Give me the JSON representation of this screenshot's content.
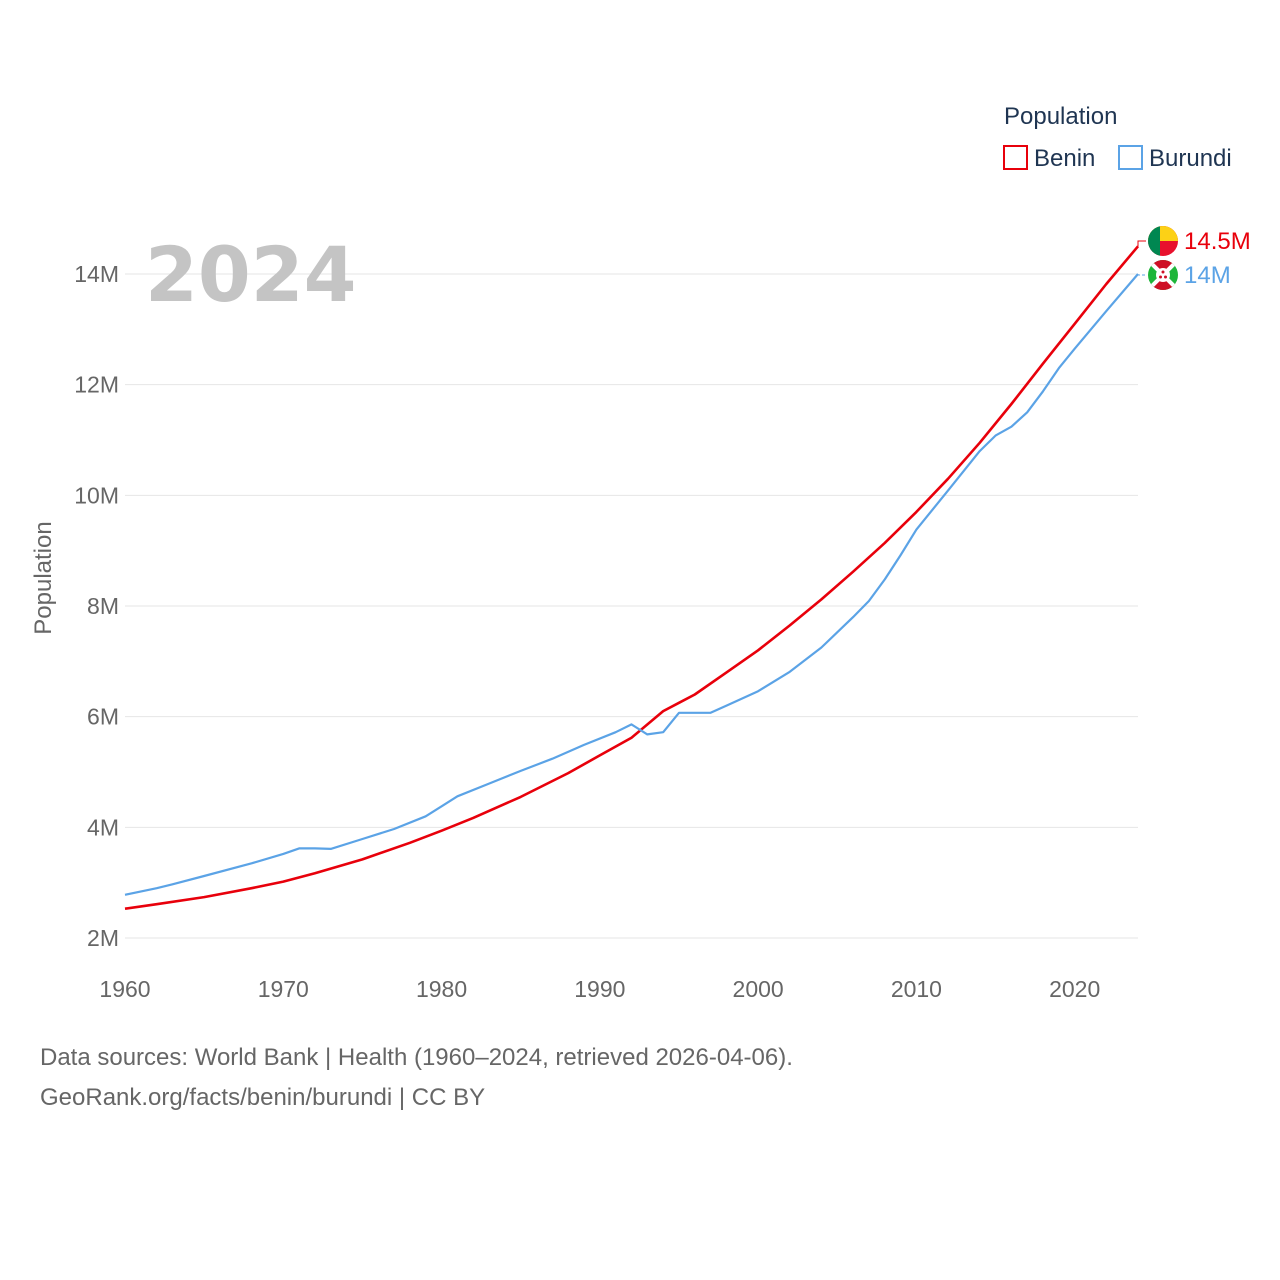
{
  "chart_data": {
    "type": "line",
    "current_year": "2024",
    "ylabel": "Population",
    "xlabel": "",
    "xlim": [
      1960,
      2024
    ],
    "ylim": [
      1.5,
      15.2
    ],
    "y_unit": "millions",
    "x_ticks": [
      1960,
      1970,
      1980,
      1990,
      2000,
      2010,
      2020
    ],
    "y_ticks": [
      {
        "value": 2,
        "label": "2M"
      },
      {
        "value": 4,
        "label": "4M"
      },
      {
        "value": 6,
        "label": "6M"
      },
      {
        "value": 8,
        "label": "8M"
      },
      {
        "value": 10,
        "label": "10M"
      },
      {
        "value": 12,
        "label": "12M"
      },
      {
        "value": 14,
        "label": "14M"
      }
    ],
    "grid": true,
    "legend": {
      "title": "Population",
      "position": "top-right",
      "entries": [
        "Benin",
        "Burundi"
      ]
    },
    "series": [
      {
        "name": "Benin",
        "color": "#e8000b",
        "end_label": "14.5M",
        "flag": "benin-flag",
        "points": [
          [
            1960,
            2.53
          ],
          [
            1962,
            2.61
          ],
          [
            1965,
            2.74
          ],
          [
            1968,
            2.9
          ],
          [
            1970,
            3.02
          ],
          [
            1972,
            3.17
          ],
          [
            1975,
            3.42
          ],
          [
            1978,
            3.72
          ],
          [
            1980,
            3.94
          ],
          [
            1982,
            4.17
          ],
          [
            1985,
            4.55
          ],
          [
            1988,
            4.98
          ],
          [
            1990,
            5.3
          ],
          [
            1992,
            5.62
          ],
          [
            1994,
            6.1
          ],
          [
            1995,
            6.25
          ],
          [
            1996,
            6.4
          ],
          [
            1998,
            6.8
          ],
          [
            2000,
            7.2
          ],
          [
            2002,
            7.65
          ],
          [
            2004,
            8.12
          ],
          [
            2006,
            8.62
          ],
          [
            2008,
            9.14
          ],
          [
            2010,
            9.7
          ],
          [
            2012,
            10.3
          ],
          [
            2014,
            10.95
          ],
          [
            2016,
            11.65
          ],
          [
            2018,
            12.38
          ],
          [
            2020,
            13.1
          ],
          [
            2022,
            13.82
          ],
          [
            2024,
            14.5
          ]
        ]
      },
      {
        "name": "Burundi",
        "color": "#5ba3e6",
        "end_label": "14M",
        "flag": "burundi-flag",
        "points": [
          [
            1960,
            2.78
          ],
          [
            1962,
            2.9
          ],
          [
            1963,
            2.97
          ],
          [
            1965,
            3.12
          ],
          [
            1968,
            3.35
          ],
          [
            1970,
            3.52
          ],
          [
            1971,
            3.62
          ],
          [
            1972,
            3.62
          ],
          [
            1973,
            3.61
          ],
          [
            1975,
            3.79
          ],
          [
            1977,
            3.97
          ],
          [
            1979,
            4.2
          ],
          [
            1980,
            4.38
          ],
          [
            1981,
            4.56
          ],
          [
            1983,
            4.79
          ],
          [
            1985,
            5.02
          ],
          [
            1987,
            5.24
          ],
          [
            1989,
            5.49
          ],
          [
            1991,
            5.72
          ],
          [
            1992,
            5.86
          ],
          [
            1993,
            5.68
          ],
          [
            1994,
            5.72
          ],
          [
            1995,
            6.07
          ],
          [
            1996,
            6.07
          ],
          [
            1997,
            6.07
          ],
          [
            1998,
            6.2
          ],
          [
            2000,
            6.46
          ],
          [
            2002,
            6.81
          ],
          [
            2004,
            7.25
          ],
          [
            2006,
            7.8
          ],
          [
            2007,
            8.09
          ],
          [
            2008,
            8.48
          ],
          [
            2009,
            8.92
          ],
          [
            2010,
            9.38
          ],
          [
            2012,
            10.09
          ],
          [
            2014,
            10.8
          ],
          [
            2015,
            11.08
          ],
          [
            2016,
            11.24
          ],
          [
            2017,
            11.5
          ],
          [
            2018,
            11.88
          ],
          [
            2019,
            12.3
          ],
          [
            2020,
            12.65
          ],
          [
            2022,
            13.33
          ],
          [
            2024,
            14.0
          ]
        ]
      }
    ]
  },
  "footer": {
    "line1": "Data sources: World Bank | Health (1960–2024, retrieved 2026-04-06).",
    "line2": "GeoRank.org/facts/benin/burundi | CC BY"
  }
}
